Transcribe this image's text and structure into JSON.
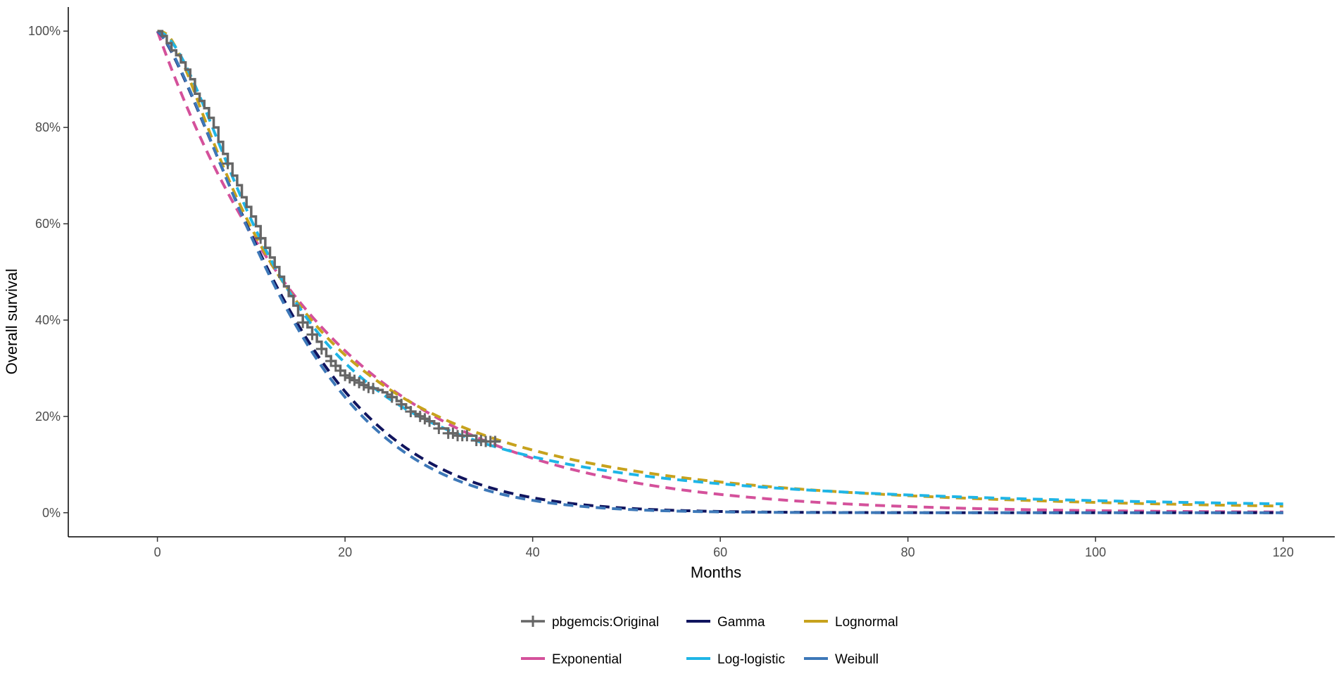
{
  "chart_data": {
    "type": "line",
    "title": "",
    "xlabel": "Months",
    "ylabel": "Overall survival",
    "xlim": [
      -9.5,
      125.5
    ],
    "ylim": [
      -0.05,
      1.05
    ],
    "x_ticks": [
      0,
      20,
      40,
      60,
      80,
      100,
      120
    ],
    "x_tick_labels": [
      "0",
      "20",
      "40",
      "60",
      "80",
      "100",
      "120"
    ],
    "y_ticks": [
      0,
      0.2,
      0.4,
      0.6,
      0.8,
      1.0
    ],
    "y_tick_labels": [
      "0%",
      "20%",
      "40%",
      "60%",
      "80%",
      "100%"
    ],
    "grid": false,
    "legend_position": "bottom",
    "km_series": {
      "name": "pbgemcis:Original",
      "color": "#666666",
      "times": [
        0,
        0.5,
        1,
        1.5,
        2,
        2.5,
        3,
        3.5,
        4,
        4.5,
        5,
        5.5,
        6,
        6.5,
        7,
        7.5,
        8,
        8.5,
        9,
        9.5,
        10,
        10.5,
        11,
        11.5,
        12,
        12.5,
        13,
        13.5,
        14,
        14.5,
        15,
        15.5,
        16,
        16.5,
        17,
        17.5,
        18,
        18.5,
        19,
        19.5,
        20,
        20.5,
        21,
        21.5,
        22,
        22.5,
        23,
        23.5,
        24,
        24.5,
        25,
        25.5,
        26,
        26.5,
        27,
        27.5,
        28,
        28.5,
        29,
        29.5,
        30,
        31,
        32,
        33,
        34,
        35,
        36.5
      ],
      "survival": [
        1.0,
        0.99,
        0.975,
        0.96,
        0.95,
        0.935,
        0.92,
        0.9,
        0.87,
        0.855,
        0.84,
        0.82,
        0.8,
        0.77,
        0.745,
        0.725,
        0.7,
        0.68,
        0.655,
        0.635,
        0.615,
        0.595,
        0.57,
        0.55,
        0.53,
        0.51,
        0.49,
        0.47,
        0.45,
        0.43,
        0.41,
        0.395,
        0.385,
        0.37,
        0.355,
        0.34,
        0.325,
        0.315,
        0.305,
        0.295,
        0.285,
        0.28,
        0.275,
        0.27,
        0.265,
        0.26,
        0.258,
        0.255,
        0.25,
        0.245,
        0.24,
        0.232,
        0.225,
        0.218,
        0.21,
        0.205,
        0.2,
        0.195,
        0.19,
        0.185,
        0.175,
        0.165,
        0.16,
        0.16,
        0.15,
        0.148,
        0.148
      ],
      "censor_times": [
        7.5,
        11,
        15.5,
        16.5,
        17.5,
        18.5,
        19,
        19.5,
        20,
        20.5,
        21,
        21.5,
        22,
        22.5,
        23,
        25,
        26,
        27,
        28,
        28.5,
        29,
        30,
        31,
        31.5,
        32,
        32.5,
        33,
        34,
        34.5,
        35,
        35.5,
        36
      ]
    },
    "series": [
      {
        "name": "Exponential",
        "color": "#d4519b",
        "dash": "14 9",
        "model": "exponential",
        "params": {
          "rate": 0.0545
        }
      },
      {
        "name": "Gamma",
        "color": "#10145e",
        "dash": "14 9",
        "model": "weibull",
        "params": {
          "scale": 15.7,
          "shape": 1.33
        }
      },
      {
        "name": "Lognormal",
        "color": "#c7a21d",
        "dash": "14 9",
        "model": "lognormal",
        "params": {
          "mu": 2.54,
          "sigma": 1.02
        }
      },
      {
        "name": "Log-logistic",
        "color": "#1fb5e6",
        "dash": "14 9",
        "model": "loglogistic",
        "params": {
          "alpha": 12.8,
          "beta": 1.78
        }
      },
      {
        "name": "Weibull",
        "color": "#3d78b8",
        "dash": "14 9",
        "model": "weibull",
        "params": {
          "scale": 15.4,
          "shape": 1.36
        }
      }
    ],
    "legend": [
      [
        "pbgemcis:Original",
        "Gamma",
        "Lognormal"
      ],
      [
        "Exponential",
        "Log-logistic",
        "Weibull"
      ]
    ]
  }
}
